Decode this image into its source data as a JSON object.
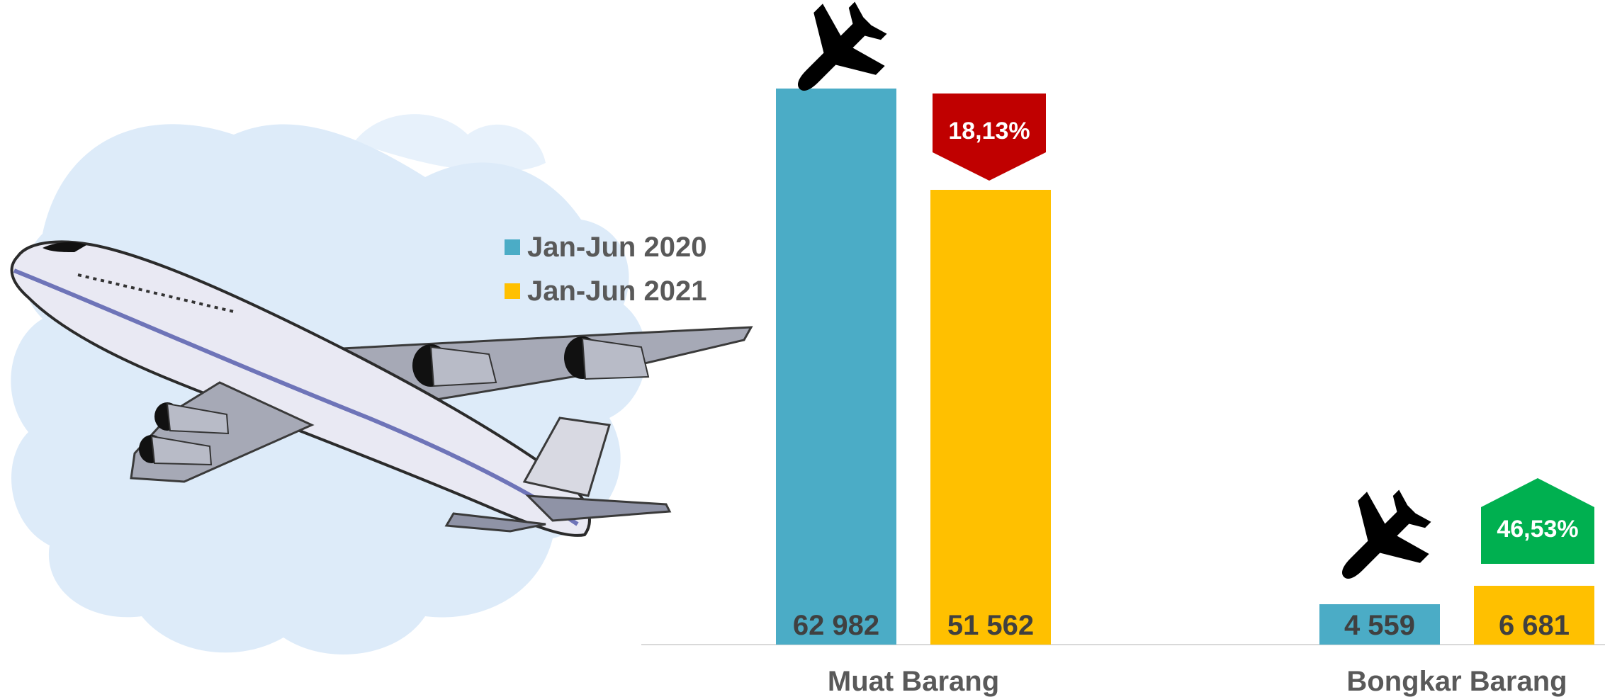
{
  "chart_data": {
    "type": "bar",
    "categories": [
      "Muat Barang",
      "Bongkar Barang"
    ],
    "series": [
      {
        "name": "Jan-Jun 2020",
        "color": "#4BACC6",
        "values": [
          62982,
          4559
        ],
        "labels": [
          "62 982",
          "4 559"
        ]
      },
      {
        "name": "Jan-Jun 2021",
        "color": "#FFC000",
        "values": [
          51562,
          6681
        ],
        "labels": [
          "51 562",
          "6 681"
        ]
      }
    ],
    "changes": [
      {
        "category": "Muat Barang",
        "label": "18,13%",
        "direction": "down",
        "color": "#C00000"
      },
      {
        "category": "Bongkar Barang",
        "label": "46,53%",
        "direction": "up",
        "color": "#00B050"
      }
    ],
    "ylim": [
      0,
      63000
    ],
    "grid": false,
    "legend_position": "left",
    "icons": [
      "airplane-illustration",
      "airplane-icon"
    ]
  }
}
